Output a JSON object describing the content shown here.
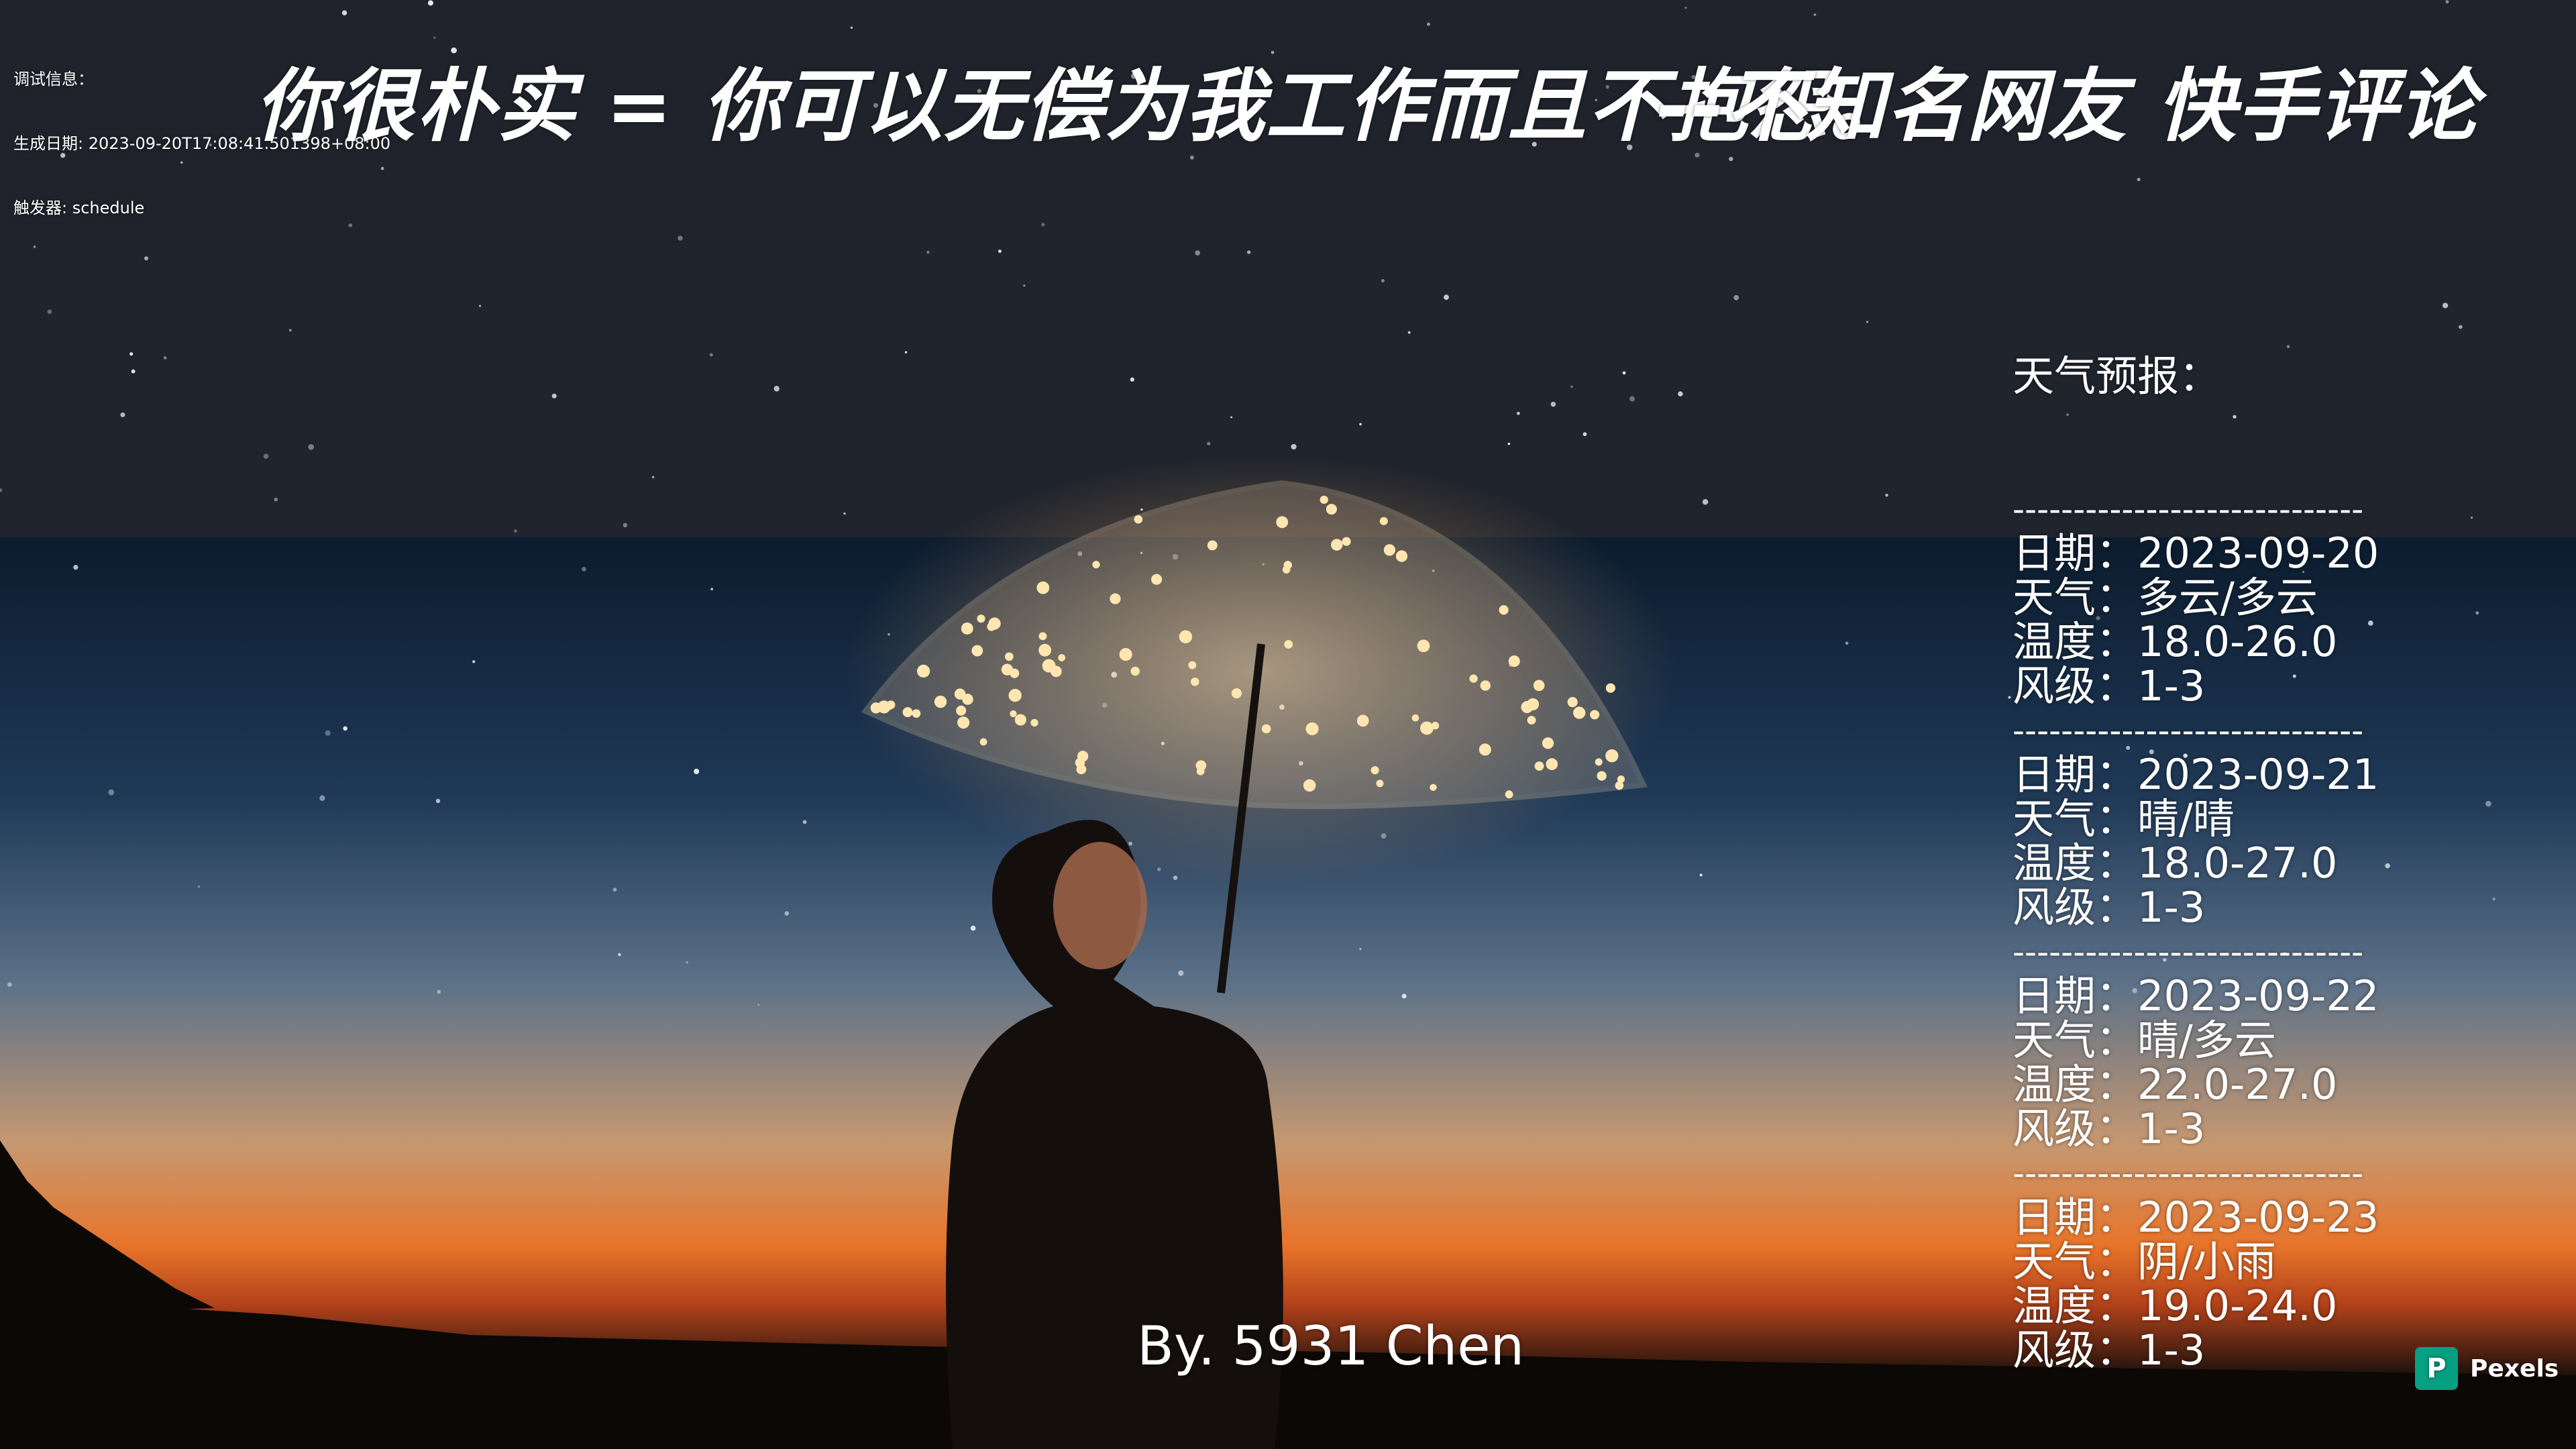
{
  "debug": {
    "label": "调试信息：",
    "generated": "生成日期: 2023-09-20T17:08:41.501398+08:00",
    "trigger": "触发器: schedule"
  },
  "quote": {
    "text": "你很朴实 = 你可以无偿为我工作而且不抱怨。",
    "source": "--不知名网友 快手评论"
  },
  "weather": {
    "title": "天气预报：",
    "divider": "-----------------------------",
    "days": [
      [
        "日期：2023-09-20",
        "天气：多云/多云",
        "温度：18.0-26.0",
        "风级：1-3"
      ],
      [
        "日期：2023-09-21",
        "天气：晴/晴",
        "温度：18.0-27.0",
        "风级：1-3"
      ],
      [
        "日期：2023-09-22",
        "天气：晴/多云",
        "温度：22.0-27.0",
        "风级：1-3"
      ],
      [
        "日期：2023-09-23",
        "天气：阴/小雨",
        "温度：19.0-24.0",
        "风级：1-3"
      ]
    ]
  },
  "author": "By. 5931 Chen",
  "watermark": "Pexels"
}
